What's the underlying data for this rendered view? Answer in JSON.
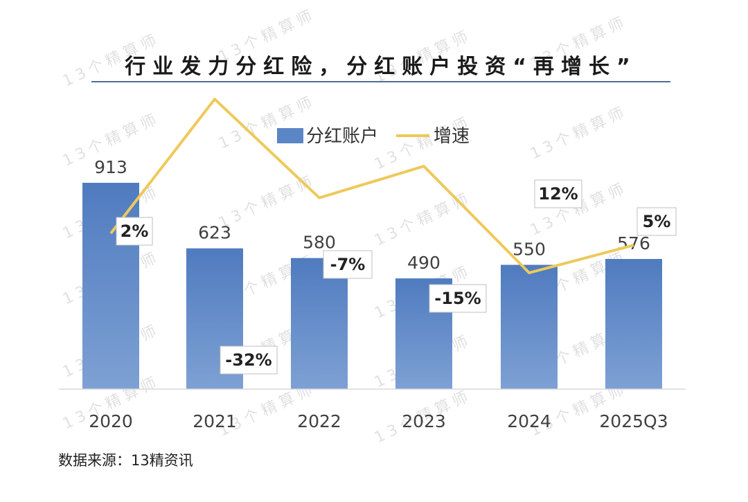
{
  "title": "行业发力分红险，分红账户投资“再增长”",
  "source": "数据来源：13精资讯",
  "watermark": "13个精算师",
  "chart_data": {
    "type": "bar",
    "categories": [
      "2020",
      "2021",
      "2022",
      "2023",
      "2024",
      "2025Q3"
    ],
    "series": [
      {
        "name": "分红账户",
        "type": "bar",
        "values": [
          913,
          623,
          580,
          490,
          550,
          576
        ],
        "color": "#5b86c5"
      },
      {
        "name": "增速",
        "type": "line",
        "values": [
          2,
          -32,
          -7,
          -15,
          12,
          5
        ],
        "unit": "%",
        "color": "#eec95a"
      }
    ],
    "value_labels": [
      "913",
      "623",
      "580",
      "490",
      "550",
      "576"
    ],
    "rate_labels": [
      "2%",
      "-32%",
      "-7%",
      "-15%",
      "12%",
      "5%"
    ],
    "legend_position": "top-center",
    "grid": false
  }
}
